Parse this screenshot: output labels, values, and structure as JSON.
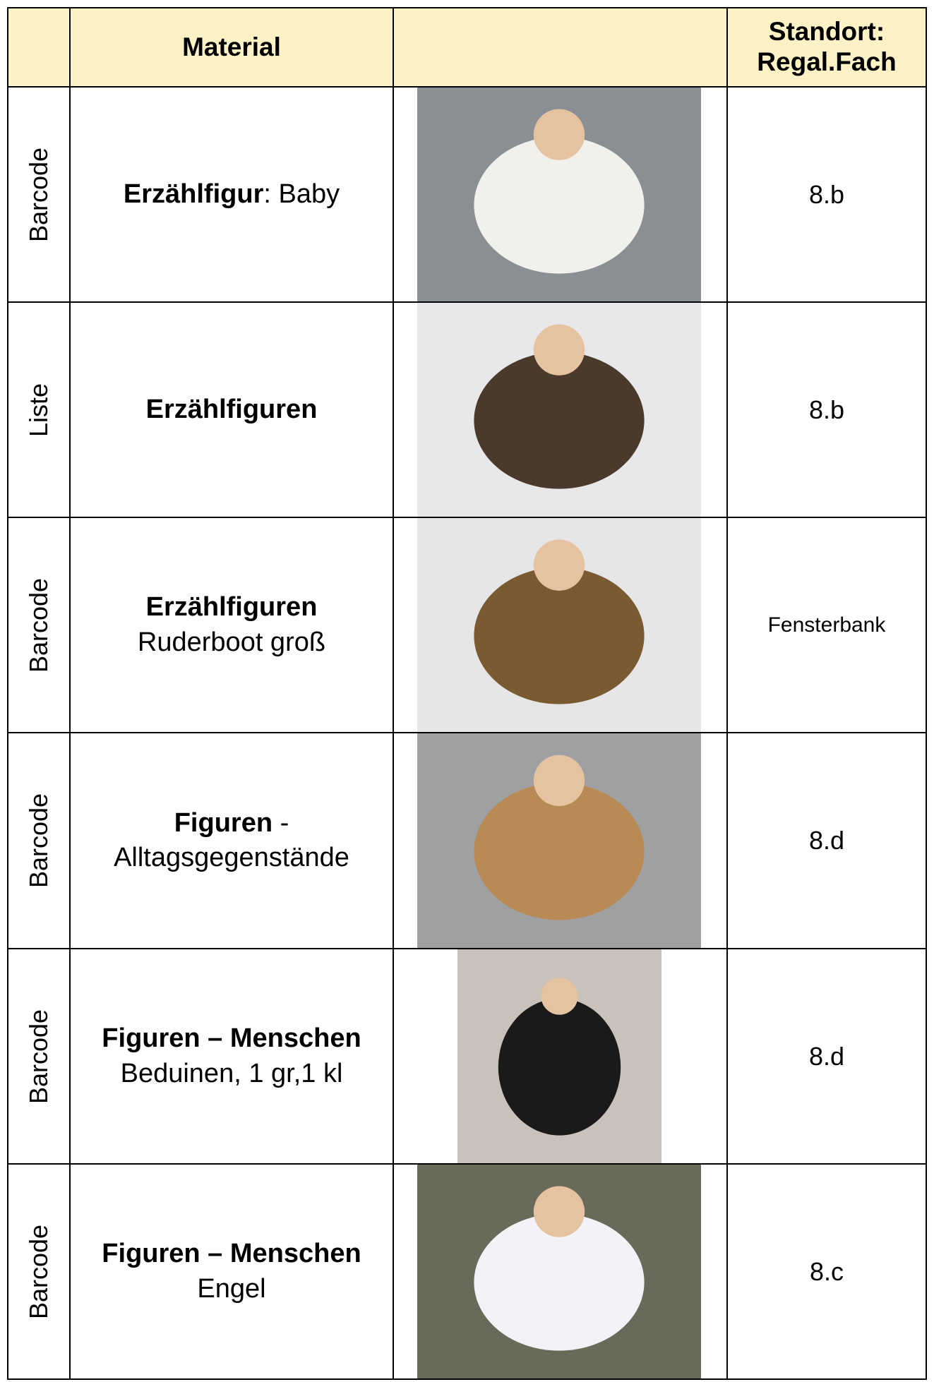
{
  "table": {
    "header": [
      "Material",
      "Standort: Regal.Fach"
    ],
    "rows": [
      {
        "code": "Barcode",
        "bold": "Erzählfigur",
        "suffix": ": Baby",
        "location": "8.b"
      },
      {
        "code": "Liste",
        "bold": "Erzählfiguren",
        "location": "8.b"
      },
      {
        "code": "Barcode",
        "bold": "Erzählfiguren",
        "detail": "Ruderboot groß",
        "location": "Fensterbank"
      },
      {
        "code": "Barcode",
        "bold": "Figuren",
        "suffix": " -",
        "detail": "Alltagsgegenstände",
        "location": "8.d"
      },
      {
        "code": "Barcode",
        "bold": "Figuren – Menschen",
        "detail": "Beduinen, 1 gr,1 kl",
        "location": "8.d"
      },
      {
        "code": "Barcode",
        "bold": "Figuren – Menschen",
        "detail": "Engel",
        "location": "8.c"
      }
    ]
  }
}
